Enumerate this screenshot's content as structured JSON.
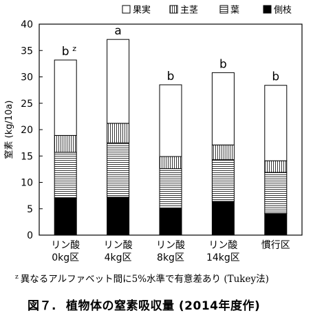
{
  "chart_data": {
    "type": "bar",
    "stacked": true,
    "categories": [
      [
        "リン酸",
        "0kg区"
      ],
      [
        "リン酸",
        "4kg区"
      ],
      [
        "リン酸",
        "8kg区"
      ],
      [
        "リン酸",
        "14kg区"
      ],
      [
        "慣行区"
      ]
    ],
    "series": [
      {
        "name": "側枝",
        "pattern": "solid-black",
        "values": [
          7.0,
          7.2,
          5.1,
          6.4,
          4.1
        ]
      },
      {
        "name": "葉",
        "pattern": "horizontal-lines",
        "values": [
          8.7,
          10.3,
          7.5,
          7.9,
          7.8
        ]
      },
      {
        "name": "主茎",
        "pattern": "vertical-lines",
        "values": [
          3.2,
          3.7,
          2.3,
          2.8,
          2.2
        ]
      },
      {
        "name": "果実",
        "pattern": "white",
        "values": [
          14.3,
          15.9,
          13.6,
          13.7,
          14.3
        ]
      }
    ],
    "legend_order": [
      "果実",
      "主茎",
      "葉",
      "側枝"
    ],
    "legend_position": "top-right",
    "significance_labels": [
      "b",
      "a",
      "b",
      "b",
      "b"
    ],
    "significance_superscript": "z",
    "ylabel": "窒素 (kg/10a)",
    "ylim": [
      0,
      40
    ],
    "yticks": [
      0,
      5,
      10,
      15,
      20,
      25,
      30,
      35,
      40
    ],
    "grid": false
  },
  "footnote": {
    "marker": "z",
    "text": "異なるアルファベット間に5%水準で有意差あり (Tukey法)"
  },
  "caption": {
    "number": "図７.",
    "title": "植物体の窒素吸収量 (2014年度作)"
  }
}
